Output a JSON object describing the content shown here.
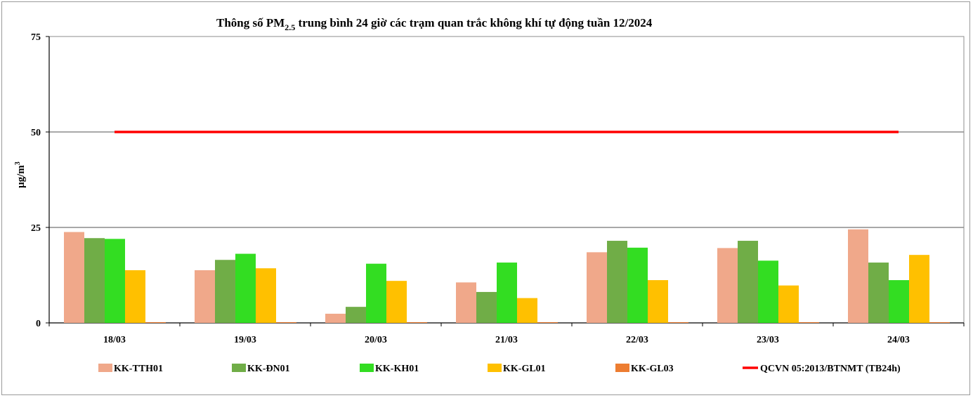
{
  "chart_data": {
    "type": "bar",
    "title": "Thông số PM",
    "title_sub": "2.5",
    "title_rest": " trung bình 24 giờ các trạm quan trắc không khí tự động tuần 12/2024",
    "ylabel": "µg/m",
    "ylabel_sup": "3",
    "xlabel": "",
    "ylim": [
      0,
      75
    ],
    "yticks": [
      "0",
      "25",
      "50",
      "75"
    ],
    "grid": true,
    "legend_position": "bottom",
    "categories": [
      "18/03",
      "19/03",
      "20/03",
      "21/03",
      "22/03",
      "23/03",
      "24/03"
    ],
    "series": [
      {
        "name": "KK-TTH01",
        "color": "#f0a88a",
        "values": [
          23.8,
          13.8,
          2.4,
          10.6,
          18.5,
          19.6,
          24.5
        ]
      },
      {
        "name": "KK-ĐN01",
        "color": "#70ad47",
        "values": [
          22.2,
          16.5,
          4.2,
          8.1,
          21.5,
          21.5,
          15.8
        ]
      },
      {
        "name": "KK-KH01",
        "color": "#33dd22",
        "values": [
          22.0,
          18.1,
          15.5,
          15.8,
          19.7,
          16.3,
          11.2
        ]
      },
      {
        "name": "KK-GL01",
        "color": "#ffc000",
        "values": [
          13.8,
          14.3,
          11.0,
          6.5,
          11.2,
          9.8,
          17.8
        ]
      },
      {
        "name": "KK-GL03",
        "color": "#ed7d31",
        "values": [
          0,
          0,
          0,
          0,
          0,
          0,
          0
        ]
      }
    ],
    "reference_line": {
      "name": "QCVN 05:2013/BTNMT (TB24h)",
      "value": 50,
      "color": "#ff0000"
    }
  }
}
